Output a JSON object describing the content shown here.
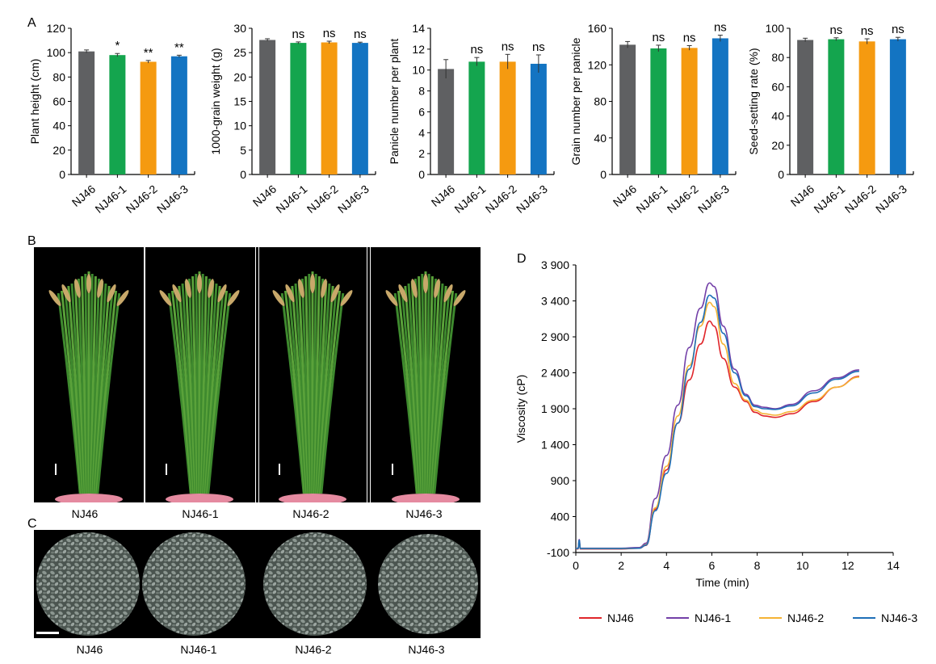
{
  "panels": {
    "a": "A",
    "b": "B",
    "c": "C",
    "d": "D"
  },
  "colors": {
    "NJ46": "#5f6062",
    "NJ46-1": "#14a54e",
    "NJ46-2": "#f59a10",
    "NJ46-3": "#1374c2",
    "line_NJ46": "#e0262b",
    "line_NJ46-1": "#7340a8",
    "line_NJ46-2": "#f5b335",
    "line_NJ46-3": "#1e6fb8"
  },
  "photo_b": {
    "labels": [
      "NJ46",
      "NJ46-1",
      "NJ46-2",
      "NJ46-3"
    ]
  },
  "photo_c": {
    "labels": [
      "NJ46",
      "NJ46-1",
      "NJ46-2",
      "NJ46-3"
    ]
  },
  "chart_data": [
    {
      "type": "bar",
      "categories": [
        "NJ46",
        "NJ46-1",
        "NJ46-2",
        "NJ46-3"
      ],
      "values": [
        101,
        98,
        92.5,
        97
      ],
      "errors": [
        1.2,
        1.3,
        1.1,
        0.9
      ],
      "significance": [
        "",
        "*",
        "**",
        "**"
      ],
      "ylabel": "Plant height (cm)",
      "ylim": [
        0,
        120
      ],
      "yticks": [
        0,
        20,
        40,
        60,
        80,
        100,
        120
      ]
    },
    {
      "type": "bar",
      "categories": [
        "NJ46",
        "NJ46-1",
        "NJ46-2",
        "NJ46-3"
      ],
      "values": [
        27.6,
        27.0,
        27.1,
        27.0
      ],
      "errors": [
        0.25,
        0.2,
        0.25,
        0.15
      ],
      "significance": [
        "",
        "ns",
        "ns",
        "ns"
      ],
      "ylabel": "1000-grain weight (g)",
      "ylim": [
        0,
        30
      ],
      "yticks": [
        0,
        5,
        10,
        15,
        20,
        25,
        30
      ]
    },
    {
      "type": "bar",
      "categories": [
        "NJ46",
        "NJ46-1",
        "NJ46-2",
        "NJ46-3"
      ],
      "values": [
        10.1,
        10.8,
        10.8,
        10.6
      ],
      "errors": [
        0.9,
        0.4,
        0.7,
        0.85
      ],
      "significance": [
        "",
        "ns",
        "ns",
        "ns"
      ],
      "ylabel": "Panicle number per plant",
      "ylim": [
        0,
        14
      ],
      "yticks": [
        0,
        2,
        4,
        6,
        8,
        10,
        12,
        14
      ]
    },
    {
      "type": "bar",
      "categories": [
        "NJ46",
        "NJ46-1",
        "NJ46-2",
        "NJ46-3"
      ],
      "values": [
        142,
        138,
        138.5,
        149
      ],
      "errors": [
        3.5,
        3.5,
        2.5,
        3.5
      ],
      "significance": [
        "",
        "ns",
        "ns",
        "ns"
      ],
      "ylabel": "Grain number per panicle",
      "ylim": [
        0,
        160
      ],
      "yticks": [
        0,
        40,
        80,
        120,
        160
      ]
    },
    {
      "type": "bar",
      "categories": [
        "NJ46",
        "NJ46-1",
        "NJ46-2",
        "NJ46-3"
      ],
      "values": [
        92,
        92.5,
        91,
        92.5
      ],
      "errors": [
        1.2,
        1.0,
        1.8,
        1.3
      ],
      "significance": [
        "",
        "ns",
        "ns",
        "ns"
      ],
      "ylabel": "Seed-setting rate (%)",
      "ylim": [
        0,
        100
      ],
      "yticks": [
        0,
        20,
        40,
        60,
        80,
        100
      ]
    },
    {
      "type": "line",
      "xlabel": "Time (min)",
      "ylabel": "Viscosity (cP)",
      "xlim": [
        0,
        14
      ],
      "ylim": [
        -100,
        3900
      ],
      "xticks": [
        0,
        2,
        4,
        6,
        8,
        10,
        12,
        14
      ],
      "yticks": [
        -100,
        400,
        900,
        1400,
        1900,
        2400,
        2900,
        3400,
        3900
      ],
      "ytick_labels": [
        "-100",
        "400",
        "900",
        "1 400",
        "1 900",
        "2 400",
        "2 900",
        "3 400",
        "3 900"
      ],
      "legend_position": "bottom",
      "series": [
        {
          "name": "NJ46",
          "x": [
            0,
            0.1,
            0.15,
            0.2,
            0.3,
            1,
            2,
            2.8,
            3.1,
            3.5,
            4,
            4.5,
            5,
            5.5,
            5.9,
            6.1,
            6.5,
            7,
            7.5,
            7.9,
            8.3,
            8.8,
            9.5,
            10.5,
            11.5,
            12.5
          ],
          "y": [
            -50,
            -50,
            50,
            -50,
            -50,
            -50,
            -50,
            -40,
            0,
            500,
            1050,
            1700,
            2300,
            2800,
            3120,
            3050,
            2600,
            2200,
            2000,
            1850,
            1800,
            1780,
            1830,
            2000,
            2200,
            2350
          ]
        },
        {
          "name": "NJ46-1",
          "x": [
            0,
            0.1,
            0.15,
            0.2,
            0.3,
            1,
            2,
            2.8,
            3.1,
            3.5,
            4,
            4.5,
            5,
            5.5,
            5.9,
            6.1,
            6.5,
            7,
            7.5,
            7.9,
            8.3,
            8.8,
            9.5,
            10.5,
            11.5,
            12.5
          ],
          "y": [
            -40,
            -40,
            80,
            -40,
            -40,
            -40,
            -40,
            -30,
            30,
            650,
            1250,
            1950,
            2750,
            3300,
            3650,
            3600,
            3050,
            2450,
            2100,
            1950,
            1920,
            1900,
            1960,
            2150,
            2330,
            2440
          ]
        },
        {
          "name": "NJ46-2",
          "x": [
            0,
            0.1,
            0.15,
            0.2,
            0.3,
            1,
            2,
            2.8,
            3.1,
            3.5,
            4,
            4.5,
            5,
            5.5,
            5.9,
            6.1,
            6.5,
            7,
            7.5,
            7.9,
            8.3,
            8.8,
            9.5,
            10.5,
            11.5,
            12.5
          ],
          "y": [
            -45,
            -45,
            60,
            -45,
            -45,
            -45,
            -45,
            -40,
            10,
            520,
            1100,
            1800,
            2500,
            3050,
            3380,
            3320,
            2800,
            2250,
            2020,
            1880,
            1830,
            1810,
            1860,
            2020,
            2200,
            2340
          ]
        },
        {
          "name": "NJ46-3",
          "x": [
            0,
            0.1,
            0.15,
            0.2,
            0.3,
            1,
            2,
            2.8,
            3.1,
            3.5,
            4,
            4.5,
            5,
            5.5,
            5.9,
            6.1,
            6.5,
            7,
            7.5,
            7.9,
            8.3,
            8.8,
            9.5,
            10.5,
            11.5,
            12.5
          ],
          "y": [
            -45,
            -45,
            70,
            -45,
            -45,
            -45,
            -45,
            -40,
            5,
            480,
            1000,
            1700,
            2450,
            3100,
            3480,
            3440,
            2950,
            2400,
            2080,
            1930,
            1900,
            1890,
            1940,
            2120,
            2310,
            2420
          ]
        }
      ]
    }
  ]
}
